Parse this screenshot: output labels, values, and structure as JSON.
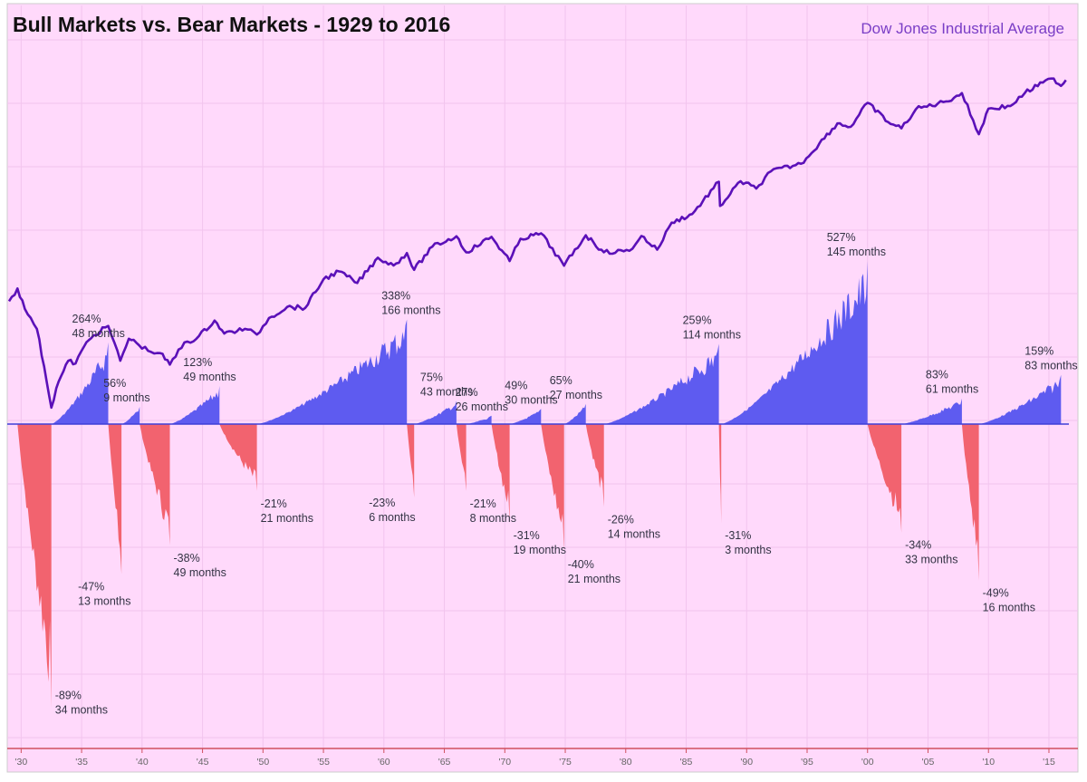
{
  "chart_data": {
    "type": "area",
    "title": "Bull Markets vs. Bear Markets - 1929 to 2016",
    "legend": "Dow Jones Industrial Average",
    "legend_position": "top-right",
    "xlim": [
      1929,
      2016.5
    ],
    "x_ticks": [
      {
        "year": 1930,
        "label": "'30"
      },
      {
        "year": 1935,
        "label": "'35"
      },
      {
        "year": 1940,
        "label": "'40"
      },
      {
        "year": 1945,
        "label": "'45"
      },
      {
        "year": 1950,
        "label": "'50"
      },
      {
        "year": 1955,
        "label": "'55"
      },
      {
        "year": 1960,
        "label": "'60"
      },
      {
        "year": 1965,
        "label": "'65"
      },
      {
        "year": 1970,
        "label": "'70"
      },
      {
        "year": 1975,
        "label": "'75"
      },
      {
        "year": 1980,
        "label": "'80"
      },
      {
        "year": 1985,
        "label": "'85"
      },
      {
        "year": 1990,
        "label": "'90"
      },
      {
        "year": 1995,
        "label": "'95"
      },
      {
        "year": 2000,
        "label": "'00"
      },
      {
        "year": 2005,
        "label": "'05"
      },
      {
        "year": 2010,
        "label": "'10"
      },
      {
        "year": 2015,
        "label": "'15"
      }
    ],
    "dow_series": {
      "name": "Dow Jones Industrial Average",
      "scale": "log",
      "ylim": [
        30,
        40000
      ],
      "points": [
        [
          1929.0,
          300
        ],
        [
          1929.7,
          380
        ],
        [
          1930.3,
          260
        ],
        [
          1930.8,
          220
        ],
        [
          1931.3,
          180
        ],
        [
          1931.9,
          90
        ],
        [
          1932.5,
          42
        ],
        [
          1932.9,
          60
        ],
        [
          1933.3,
          75
        ],
        [
          1933.9,
          100
        ],
        [
          1934.5,
          95
        ],
        [
          1935.2,
          130
        ],
        [
          1936.0,
          160
        ],
        [
          1937.2,
          190
        ],
        [
          1938.2,
          100
        ],
        [
          1938.9,
          150
        ],
        [
          1939.5,
          140
        ],
        [
          1940.5,
          120
        ],
        [
          1941.5,
          115
        ],
        [
          1942.3,
          93
        ],
        [
          1943.5,
          140
        ],
        [
          1944.5,
          150
        ],
        [
          1946.0,
          210
        ],
        [
          1946.8,
          165
        ],
        [
          1948.5,
          180
        ],
        [
          1949.5,
          162
        ],
        [
          1950.5,
          220
        ],
        [
          1952.0,
          270
        ],
        [
          1953.5,
          265
        ],
        [
          1955.0,
          450
        ],
        [
          1956.3,
          520
        ],
        [
          1957.8,
          420
        ],
        [
          1959.5,
          670
        ],
        [
          1960.8,
          580
        ],
        [
          1961.9,
          730
        ],
        [
          1962.5,
          535
        ],
        [
          1964.0,
          820
        ],
        [
          1966.0,
          995
        ],
        [
          1966.8,
          740
        ],
        [
          1968.9,
          985
        ],
        [
          1970.4,
          630
        ],
        [
          1971.3,
          950
        ],
        [
          1973.0,
          1050
        ],
        [
          1974.9,
          578
        ],
        [
          1976.7,
          1015
        ],
        [
          1978.2,
          740
        ],
        [
          1980.3,
          760
        ],
        [
          1981.3,
          1000
        ],
        [
          1982.6,
          777
        ],
        [
          1983.8,
          1280
        ],
        [
          1985.5,
          1500
        ],
        [
          1987.7,
          2720
        ],
        [
          1987.8,
          1740
        ],
        [
          1989.5,
          2750
        ],
        [
          1990.8,
          2400
        ],
        [
          1992.0,
          3300
        ],
        [
          1994.5,
          3800
        ],
        [
          1996.0,
          5500
        ],
        [
          1997.5,
          8000
        ],
        [
          1998.6,
          7500
        ],
        [
          2000.0,
          11700
        ],
        [
          2001.7,
          8200
        ],
        [
          2002.8,
          7300
        ],
        [
          2004.0,
          10400
        ],
        [
          2006.5,
          12000
        ],
        [
          2007.8,
          14000
        ],
        [
          2009.2,
          6550
        ],
        [
          2010.0,
          10500
        ],
        [
          2011.8,
          11000
        ],
        [
          2013.0,
          14000
        ],
        [
          2014.5,
          17000
        ],
        [
          2015.4,
          18300
        ],
        [
          2016.0,
          16000
        ],
        [
          2016.4,
          17800
        ]
      ]
    },
    "bull_bear_axis": {
      "ylim_bottom": -100,
      "ylim_top": 527
    },
    "markets": [
      {
        "type": "bear",
        "start": 1929.7,
        "end": 1932.5,
        "pct": -89,
        "months": 34,
        "pct_label": "-89%",
        "months_label": "34 months"
      },
      {
        "type": "bull",
        "start": 1932.5,
        "end": 1937.2,
        "pct": 264,
        "months": 48,
        "pct_label": "264%",
        "months_label": "48 months"
      },
      {
        "type": "bear",
        "start": 1937.2,
        "end": 1938.3,
        "pct": -47,
        "months": 13,
        "pct_label": "-47%",
        "months_label": "13 months"
      },
      {
        "type": "bull",
        "start": 1938.3,
        "end": 1939.8,
        "pct": 56,
        "months": 9,
        "pct_label": "56%",
        "months_label": "9 months"
      },
      {
        "type": "bear",
        "start": 1939.8,
        "end": 1942.3,
        "pct": -38,
        "months": 49,
        "pct_label": "-38%",
        "months_label": "49 months"
      },
      {
        "type": "bull",
        "start": 1942.3,
        "end": 1946.4,
        "pct": 123,
        "months": 49,
        "pct_label": "123%",
        "months_label": "49 months"
      },
      {
        "type": "bear",
        "start": 1946.4,
        "end": 1949.5,
        "pct": -21,
        "months": 21,
        "pct_label": "-21%",
        "months_label": "21 months"
      },
      {
        "type": "bull",
        "start": 1949.5,
        "end": 1961.9,
        "pct": 338,
        "months": 166,
        "pct_label": "338%",
        "months_label": "166 months"
      },
      {
        "type": "bear",
        "start": 1961.9,
        "end": 1962.5,
        "pct": -23,
        "months": 6,
        "pct_label": "-23%",
        "months_label": "6 months"
      },
      {
        "type": "bull",
        "start": 1962.5,
        "end": 1966.0,
        "pct": 75,
        "months": 43,
        "pct_label": "75%",
        "months_label": "43 months"
      },
      {
        "type": "bear",
        "start": 1966.0,
        "end": 1966.8,
        "pct": -21,
        "months": 8,
        "pct_label": "-21%",
        "months_label": "8 months"
      },
      {
        "type": "bull",
        "start": 1966.8,
        "end": 1968.9,
        "pct": 27,
        "months": 26,
        "pct_label": "27%",
        "months_label": "26 months"
      },
      {
        "type": "bear",
        "start": 1968.9,
        "end": 1970.4,
        "pct": -31,
        "months": 19,
        "pct_label": "-31%",
        "months_label": "19 months"
      },
      {
        "type": "bull",
        "start": 1970.4,
        "end": 1973.0,
        "pct": 49,
        "months": 30,
        "pct_label": "49%",
        "months_label": "30 months"
      },
      {
        "type": "bear",
        "start": 1973.0,
        "end": 1974.9,
        "pct": -40,
        "months": 21,
        "pct_label": "-40%",
        "months_label": "21 months"
      },
      {
        "type": "bull",
        "start": 1974.9,
        "end": 1976.7,
        "pct": 65,
        "months": 27,
        "pct_label": "65%",
        "months_label": "27 months"
      },
      {
        "type": "bear",
        "start": 1976.7,
        "end": 1978.2,
        "pct": -26,
        "months": 14,
        "pct_label": "-26%",
        "months_label": "14 months"
      },
      {
        "type": "bull",
        "start": 1978.2,
        "end": 1987.7,
        "pct": 259,
        "months": 114,
        "pct_label": "259%",
        "months_label": "114 months"
      },
      {
        "type": "bear",
        "start": 1987.7,
        "end": 1987.9,
        "pct": -31,
        "months": 3,
        "pct_label": "-31%",
        "months_label": "3 months"
      },
      {
        "type": "bull",
        "start": 1987.9,
        "end": 2000.0,
        "pct": 527,
        "months": 145,
        "pct_label": "527%",
        "months_label": "145 months"
      },
      {
        "type": "bear",
        "start": 2000.0,
        "end": 2002.8,
        "pct": -34,
        "months": 33,
        "pct_label": "-34%",
        "months_label": "33 months"
      },
      {
        "type": "bull",
        "start": 2002.8,
        "end": 2007.8,
        "pct": 83,
        "months": 61,
        "pct_label": "83%",
        "months_label": "61 months"
      },
      {
        "type": "bear",
        "start": 2007.8,
        "end": 2009.2,
        "pct": -49,
        "months": 16,
        "pct_label": "-49%",
        "months_label": "16 months"
      },
      {
        "type": "bull",
        "start": 2009.2,
        "end": 2016.0,
        "pct": 159,
        "months": 83,
        "pct_label": "159%",
        "months_label": "83 months"
      }
    ],
    "colors": {
      "background": "#ffd9fb",
      "grid": "#f2c4ee",
      "dow_line": "#5b10b8",
      "bull": "#5e5bf0",
      "bear": "#f2636f",
      "axis": "#d0505f",
      "legend_text": "#7a3ec6",
      "baseline": "#3f3fd8"
    }
  }
}
